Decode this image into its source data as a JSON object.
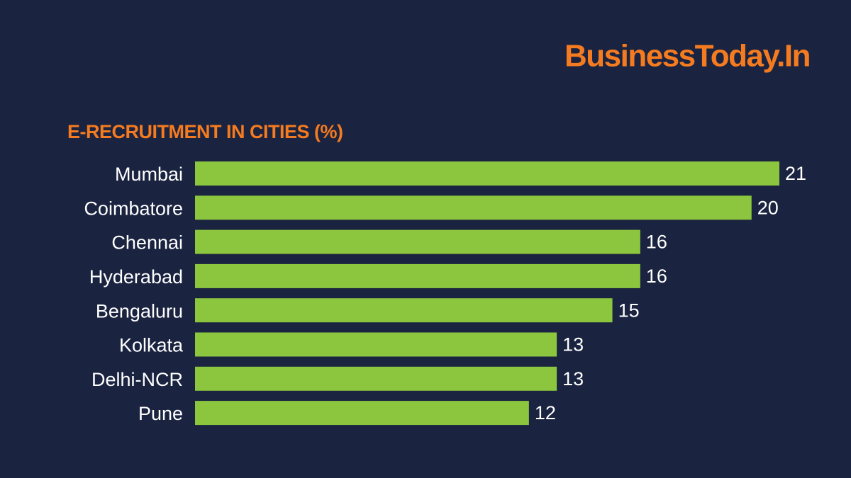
{
  "brand": "BusinessToday.In",
  "chart_data": {
    "type": "bar",
    "orientation": "horizontal",
    "title": "E-RECRUITMENT IN CITIES (%)",
    "categories": [
      "Mumbai",
      "Coimbatore",
      "Chennai",
      "Hyderabad",
      "Bengaluru",
      "Kolkata",
      "Delhi-NCR",
      "Pune"
    ],
    "values": [
      21,
      20,
      16,
      16,
      15,
      13,
      13,
      12
    ],
    "color": "#8cc63f"
  }
}
